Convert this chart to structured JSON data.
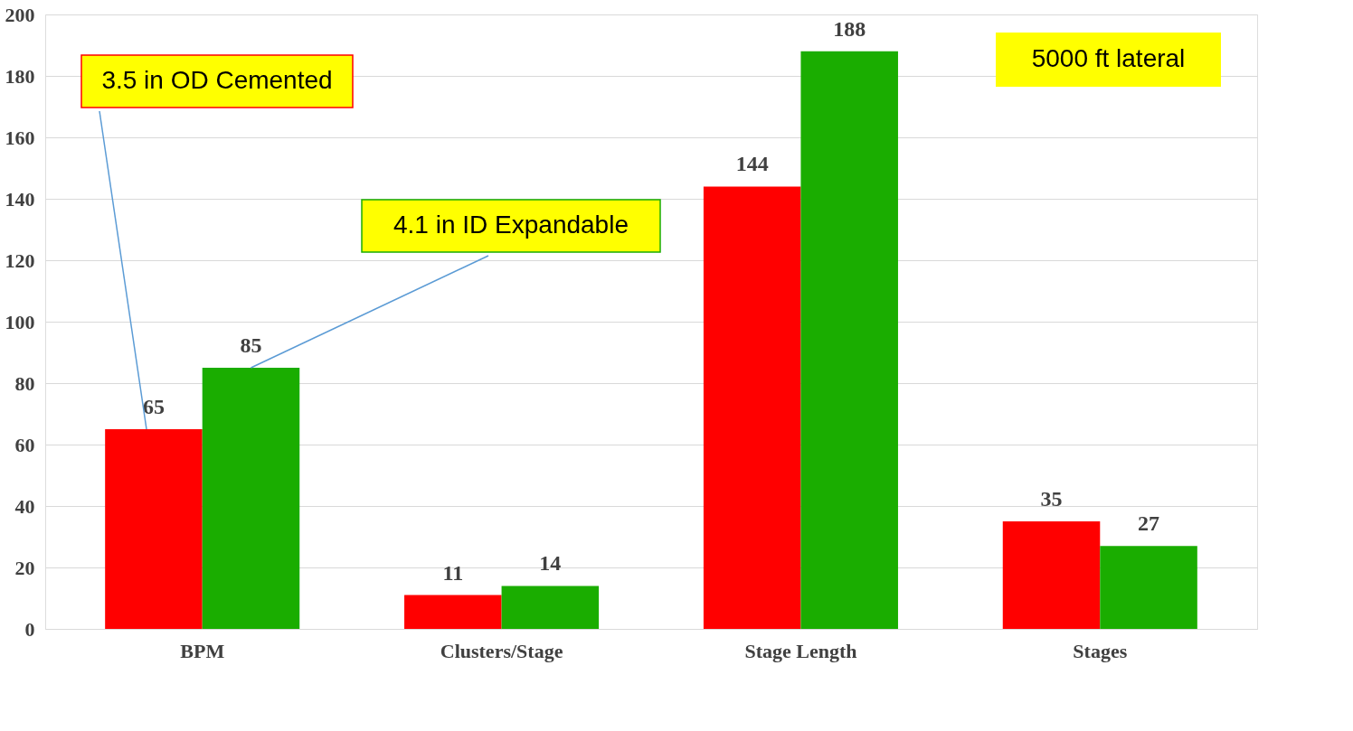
{
  "chart_data": {
    "type": "bar",
    "categories": [
      "BPM",
      "Clusters/Stage",
      "Stage Length",
      "Stages"
    ],
    "series": [
      {
        "name": "3.5 in OD Cemented",
        "color": "#ff0000",
        "values": [
          65,
          11,
          144,
          35
        ]
      },
      {
        "name": "4.1 in ID Expandable",
        "color": "#1aad00",
        "values": [
          85,
          14,
          188,
          27
        ]
      }
    ],
    "ylim": [
      0,
      200
    ],
    "yticks": [
      0,
      20,
      40,
      60,
      80,
      100,
      120,
      140,
      160,
      180,
      200
    ],
    "grid": "y",
    "data_labels": true,
    "annotations": [
      "5000 ft lateral"
    ]
  }
}
